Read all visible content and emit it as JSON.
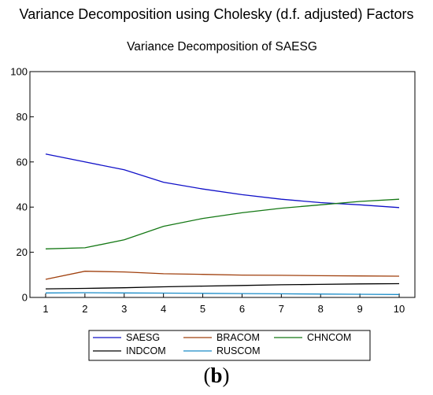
{
  "figure": {
    "main_title": "Variance Decomposition using Cholesky (d.f. adjusted) Factors",
    "caption_open": "(",
    "caption_letter": "b",
    "caption_close": ")"
  },
  "chart_data": {
    "type": "line",
    "title": "Variance Decomposition of SAESG",
    "xlabel": "",
    "ylabel": "",
    "x": [
      1,
      2,
      3,
      4,
      5,
      6,
      7,
      8,
      9,
      10
    ],
    "xlim": [
      0.6,
      10.4
    ],
    "ylim": [
      0,
      100
    ],
    "yticks": [
      0,
      20,
      40,
      60,
      80,
      100
    ],
    "grid": false,
    "legend_position": "bottom",
    "series": [
      {
        "name": "SAESG",
        "color": "#1010c8",
        "values": [
          63.5,
          60.0,
          56.5,
          51.0,
          48.0,
          45.5,
          43.5,
          42.0,
          41.0,
          39.8
        ]
      },
      {
        "name": "BRACOM",
        "color": "#a0400e",
        "values": [
          8.0,
          11.6,
          11.3,
          10.5,
          10.2,
          9.9,
          9.8,
          9.6,
          9.5,
          9.4
        ]
      },
      {
        "name": "CHNCOM",
        "color": "#147814",
        "values": [
          21.5,
          22.0,
          25.5,
          31.5,
          35.0,
          37.5,
          39.5,
          41.0,
          42.5,
          43.5
        ]
      },
      {
        "name": "INDCOM",
        "color": "#000000",
        "values": [
          3.8,
          4.0,
          4.3,
          4.7,
          5.0,
          5.3,
          5.6,
          5.8,
          6.0,
          6.1
        ]
      },
      {
        "name": "RUSCOM",
        "color": "#1a8cc8",
        "values": [
          2.0,
          2.1,
          2.0,
          1.9,
          1.8,
          1.7,
          1.6,
          1.5,
          1.4,
          1.3
        ]
      }
    ]
  }
}
